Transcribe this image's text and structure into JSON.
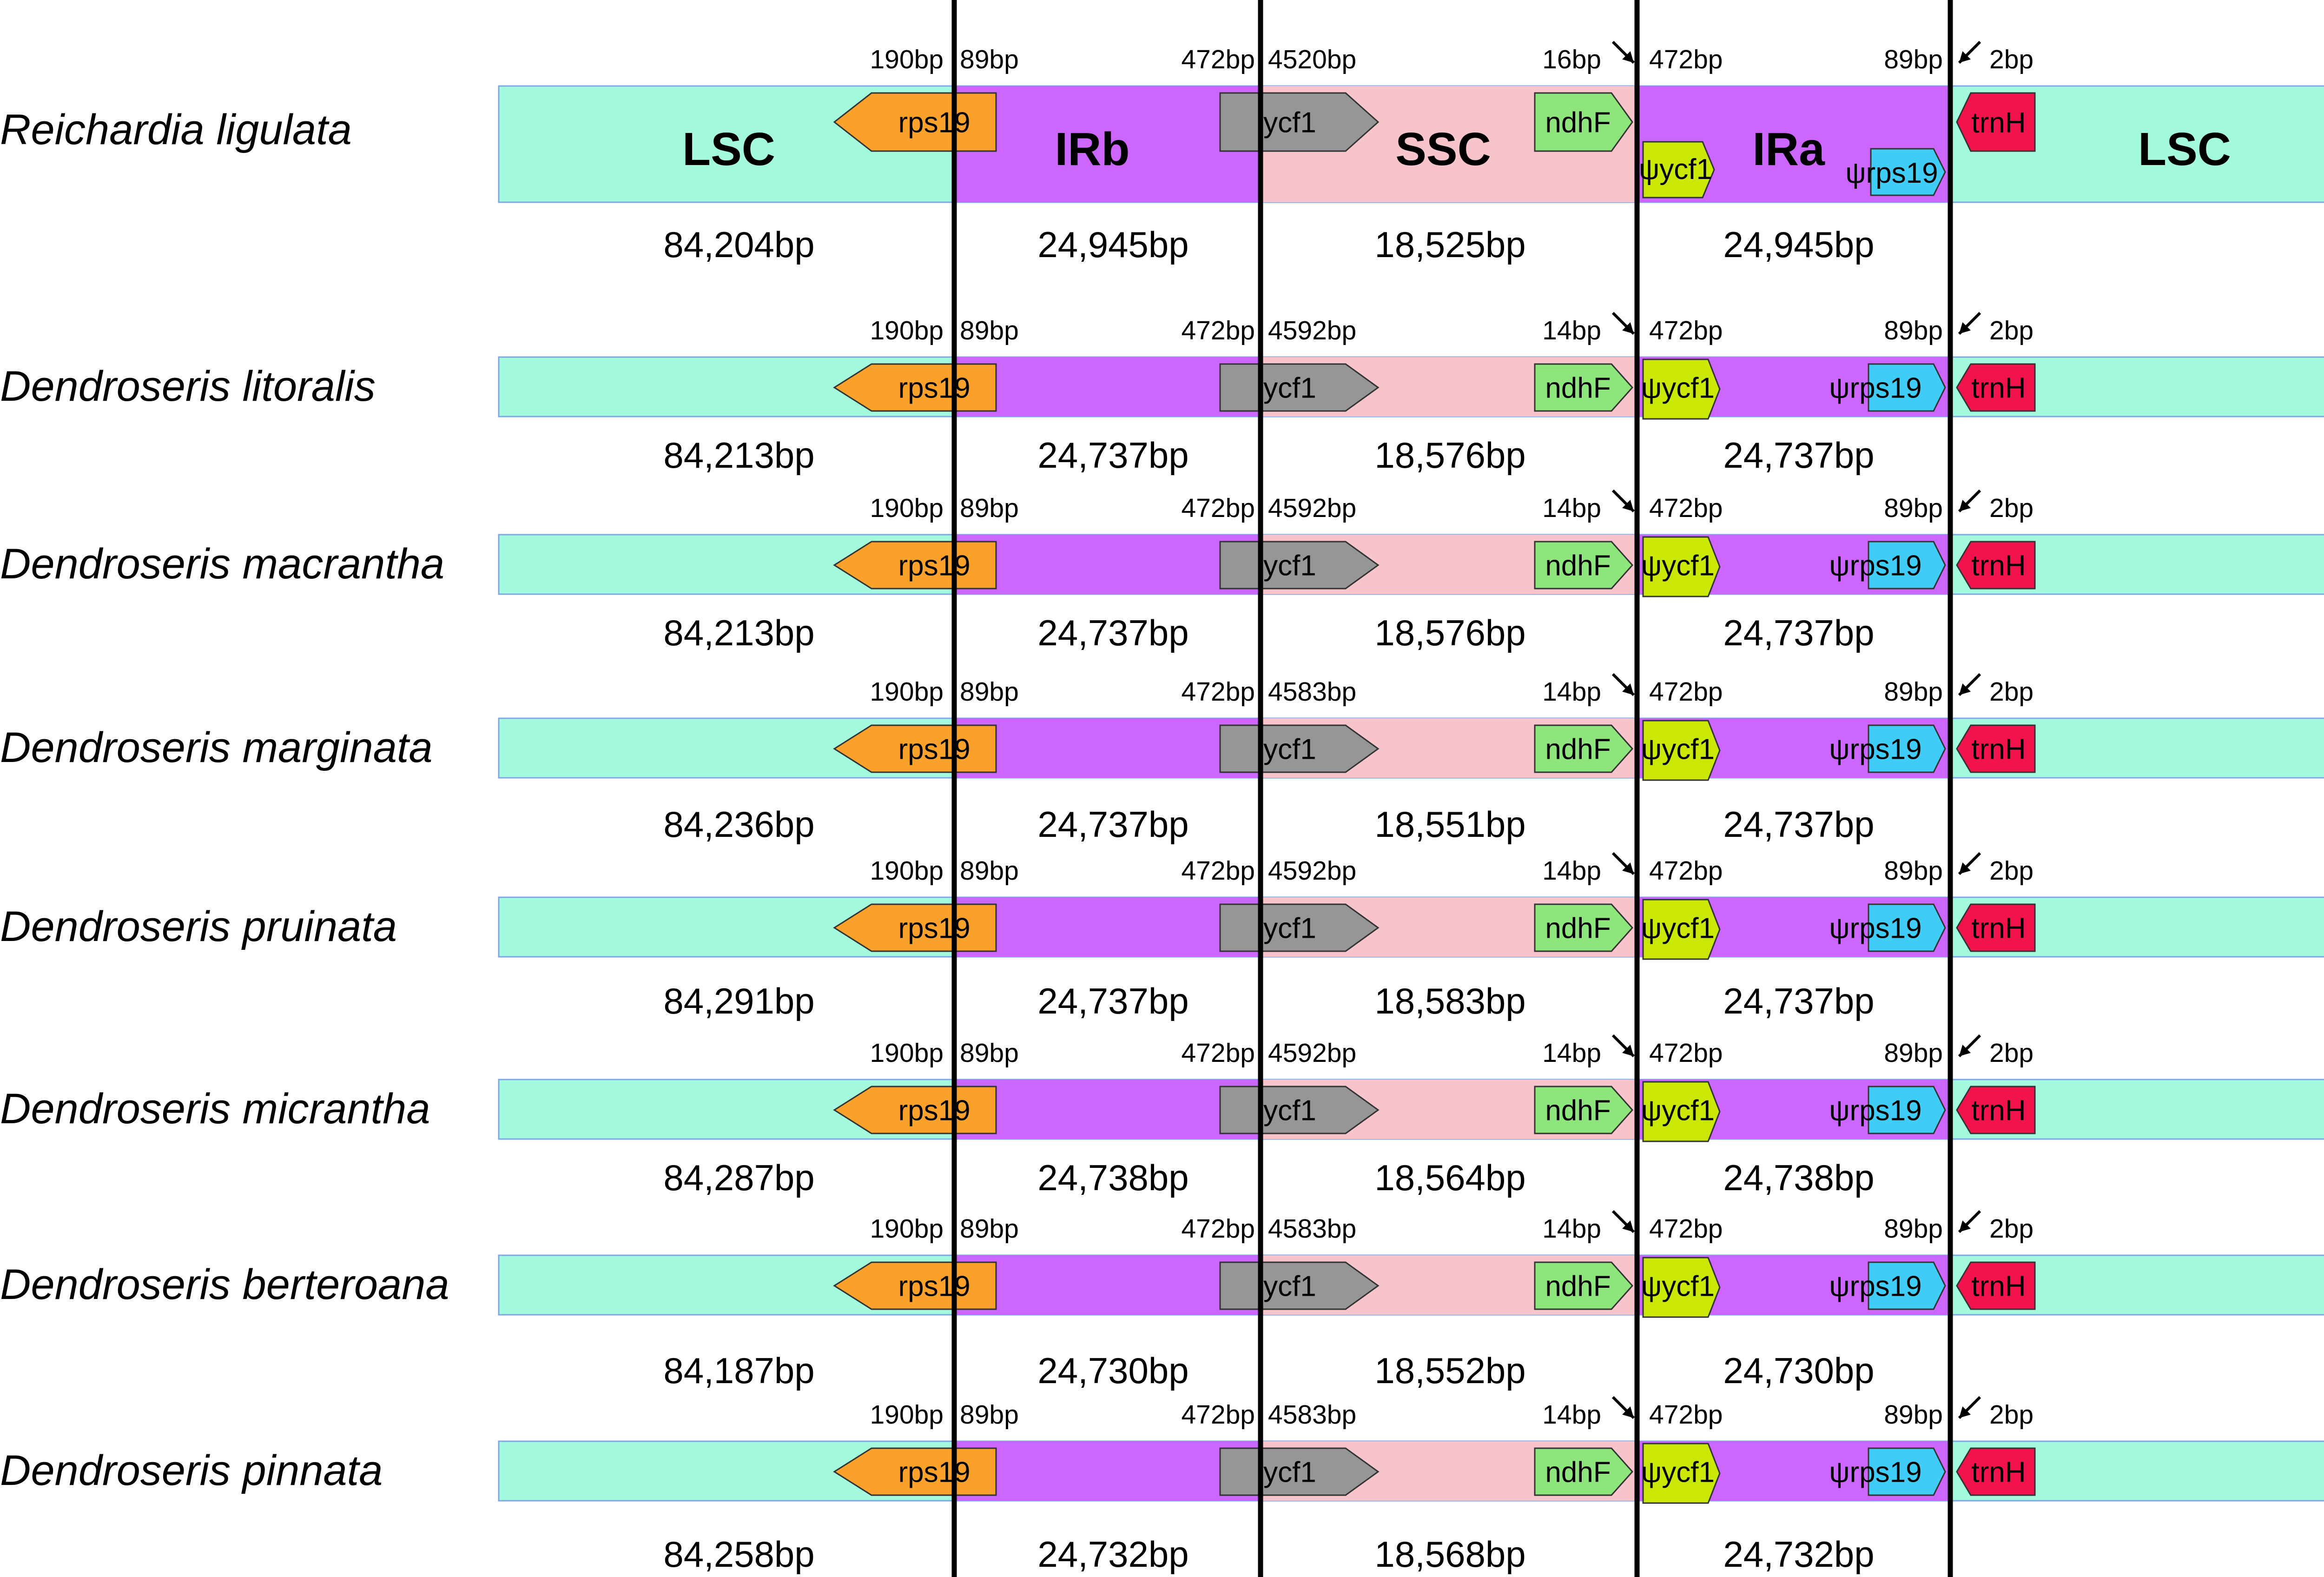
{
  "colors": {
    "lsc": "#a3fadc",
    "ir": "#cc66ff",
    "ssc": "#f7c4cb",
    "rps19": "#f9a12b",
    "ycf1": "#969696",
    "ndhF": "#8ee57c",
    "psi_ycf1": "#cbe805",
    "psi_rps19": "#3fcdf7",
    "trnH": "#f2134c"
  },
  "region_labels": [
    "LSC",
    "IRb",
    "SSC",
    "IRa",
    "LSC"
  ],
  "species": [
    {
      "name": "Reichardia ligulata",
      "lsc": "84,204bp",
      "irb": "24,945bp",
      "ssc": "18,525bp",
      "ira": "24,945bp",
      "jla_left": "190bp",
      "jla_right": "89bp",
      "jsb_left": "472bp",
      "jsb_right": "4520bp",
      "jsa_left": "16bp",
      "jsa_right": "472bp",
      "jlb_left": "89bp",
      "jlb_right": "2bp",
      "genes": {
        "rps19": "rps19",
        "ycf1": "ycf1",
        "ndhF": "ndhF",
        "psi_ycf1": "ψycf1",
        "psi_rps19": "ψrps19",
        "trnH": "trnH"
      }
    },
    {
      "name": "Dendroseris litoralis",
      "lsc": "84,213bp",
      "irb": "24,737bp",
      "ssc": "18,576bp",
      "ira": "24,737bp",
      "jla_left": "190bp",
      "jla_right": "89bp",
      "jsb_left": "472bp",
      "jsb_right": "4592bp",
      "jsa_left": "14bp",
      "jsa_right": "472bp",
      "jlb_left": "89bp",
      "jlb_right": "2bp",
      "genes": {
        "rps19": "rps19",
        "ycf1": "ycf1",
        "ndhF": "ndhF",
        "psi_ycf1": "ψycf1",
        "psi_rps19": "ψrps19",
        "trnH": "trnH"
      }
    },
    {
      "name": "Dendroseris macrantha",
      "lsc": "84,213bp",
      "irb": "24,737bp",
      "ssc": "18,576bp",
      "ira": "24,737bp",
      "jla_left": "190bp",
      "jla_right": "89bp",
      "jsb_left": "472bp",
      "jsb_right": "4592bp",
      "jsa_left": "14bp",
      "jsa_right": "472bp",
      "jlb_left": "89bp",
      "jlb_right": "2bp",
      "genes": {
        "rps19": "rps19",
        "ycf1": "ycf1",
        "ndhF": "ndhF",
        "psi_ycf1": "ψycf1",
        "psi_rps19": "ψrps19",
        "trnH": "trnH"
      }
    },
    {
      "name": "Dendroseris marginata",
      "lsc": "84,236bp",
      "irb": "24,737bp",
      "ssc": "18,551bp",
      "ira": "24,737bp",
      "jla_left": "190bp",
      "jla_right": "89bp",
      "jsb_left": "472bp",
      "jsb_right": "4583bp",
      "jsa_left": "14bp",
      "jsa_right": "472bp",
      "jlb_left": "89bp",
      "jlb_right": "2bp",
      "genes": {
        "rps19": "rps19",
        "ycf1": "ycf1",
        "ndhF": "ndhF",
        "psi_ycf1": "ψycf1",
        "psi_rps19": "ψrps19",
        "trnH": "trnH"
      }
    },
    {
      "name": "Dendroseris pruinata",
      "lsc": "84,291bp",
      "irb": "24,737bp",
      "ssc": "18,583bp",
      "ira": "24,737bp",
      "jla_left": "190bp",
      "jla_right": "89bp",
      "jsb_left": "472bp",
      "jsb_right": "4592bp",
      "jsa_left": "14bp",
      "jsa_right": "472bp",
      "jlb_left": "89bp",
      "jlb_right": "2bp",
      "genes": {
        "rps19": "rps19",
        "ycf1": "ycf1",
        "ndhF": "ndhF",
        "psi_ycf1": "ψycf1",
        "psi_rps19": "ψrps19",
        "trnH": "trnH"
      }
    },
    {
      "name": "Dendroseris micrantha",
      "lsc": "84,287bp",
      "irb": "24,738bp",
      "ssc": "18,564bp",
      "ira": "24,738bp",
      "jla_left": "190bp",
      "jla_right": "89bp",
      "jsb_left": "472bp",
      "jsb_right": "4592bp",
      "jsa_left": "14bp",
      "jsa_right": "472bp",
      "jlb_left": "89bp",
      "jlb_right": "2bp",
      "genes": {
        "rps19": "rps19",
        "ycf1": "ycf1",
        "ndhF": "ndhF",
        "psi_ycf1": "ψycf1",
        "psi_rps19": "ψrps19",
        "trnH": "trnH"
      }
    },
    {
      "name": "Dendroseris berteroana",
      "lsc": "84,187bp",
      "irb": "24,730bp",
      "ssc": "18,552bp",
      "ira": "24,730bp",
      "jla_left": "190bp",
      "jla_right": "89bp",
      "jsb_left": "472bp",
      "jsb_right": "4583bp",
      "jsa_left": "14bp",
      "jsa_right": "472bp",
      "jlb_left": "89bp",
      "jlb_right": "2bp",
      "genes": {
        "rps19": "rps19",
        "ycf1": "ycf1",
        "ndhF": "ndhF",
        "psi_ycf1": "ψycf1",
        "psi_rps19": "ψrps19",
        "trnH": "trnH"
      }
    },
    {
      "name": "Dendroseris pinnata",
      "lsc": "84,258bp",
      "irb": "24,732bp",
      "ssc": "18,568bp",
      "ira": "24,732bp",
      "jla_left": "190bp",
      "jla_right": "89bp",
      "jsb_left": "472bp",
      "jsb_right": "4583bp",
      "jsa_left": "14bp",
      "jsa_right": "472bp",
      "jlb_left": "89bp",
      "jlb_right": "2bp",
      "genes": {
        "rps19": "rps19",
        "ycf1": "ycf1",
        "ndhF": "ndhF",
        "psi_ycf1": "ψycf1",
        "psi_rps19": "ψrps19",
        "trnH": "trnH"
      }
    }
  ]
}
